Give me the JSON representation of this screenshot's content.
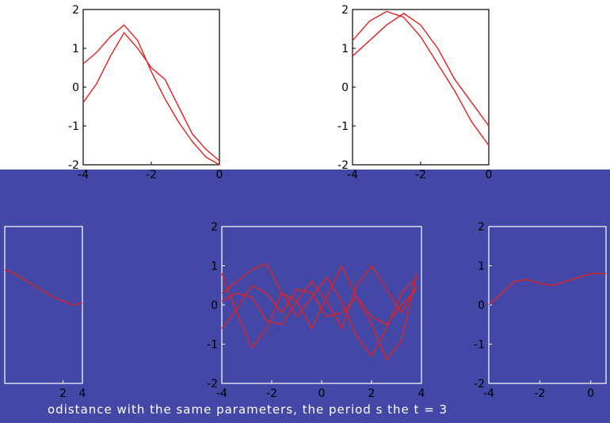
{
  "colors": {
    "background": "#4348a6",
    "band": "#ffffff",
    "axes": "#ffffff",
    "axes_top": "#000000",
    "curve": "#e02020",
    "tick_top": "#000000",
    "tick_bottom": "#000000"
  },
  "caption": "odistance with the same parameters, the period s the t = 3",
  "chart_data": [
    {
      "type": "line",
      "panel": "top-left",
      "xlim": [
        -4,
        0
      ],
      "ylim": [
        -2,
        2
      ],
      "xticks": [
        "-4",
        "-2",
        "0"
      ],
      "yticks": [
        "2",
        "1",
        "0",
        "-1",
        "-2"
      ],
      "series": [
        {
          "x": [
            -4,
            -3.6,
            -3.2,
            -2.8,
            -2.4,
            -2.0,
            -1.6,
            -1.2,
            -0.8,
            -0.4,
            0
          ],
          "values": [
            0.6,
            0.9,
            1.3,
            1.6,
            1.2,
            0.4,
            -0.3,
            -0.9,
            -1.4,
            -1.8,
            -2.0
          ]
        },
        {
          "x": [
            -4,
            -3.6,
            -3.2,
            -2.8,
            -2.4,
            -2.0,
            -1.6,
            -1.2,
            -0.8,
            -0.4,
            0
          ],
          "values": [
            -0.4,
            0.1,
            0.8,
            1.4,
            1.0,
            0.5,
            0.2,
            -0.5,
            -1.2,
            -1.6,
            -1.9
          ]
        }
      ]
    },
    {
      "type": "line",
      "panel": "top-right",
      "xlim": [
        -4,
        0
      ],
      "ylim": [
        -2,
        2
      ],
      "xticks": [
        "-4",
        "-2",
        "0"
      ],
      "yticks": [
        "2",
        "1",
        "0",
        "-1",
        "-2"
      ],
      "series": [
        {
          "x": [
            -4,
            -3.5,
            -3.0,
            -2.5,
            -2.0,
            -1.5,
            -1.0,
            -0.5,
            0
          ],
          "values": [
            1.2,
            1.7,
            1.95,
            1.8,
            1.3,
            0.6,
            -0.1,
            -0.9,
            -1.5
          ]
        },
        {
          "x": [
            -4,
            -3.5,
            -3.0,
            -2.5,
            -2.0,
            -1.5,
            -1.0,
            -0.5,
            0
          ],
          "values": [
            0.8,
            1.2,
            1.6,
            1.9,
            1.6,
            1.0,
            0.2,
            -0.4,
            -1.0
          ]
        }
      ]
    },
    {
      "type": "line",
      "panel": "bottom-left",
      "xlim": [
        -4,
        4
      ],
      "ylim": [
        -2,
        2
      ],
      "xticks": [
        "2",
        "4"
      ],
      "yticks": [],
      "series": [
        {
          "x": [
            -4,
            -3,
            -2,
            -1,
            0,
            1,
            2,
            3,
            4
          ],
          "values": [
            0.9,
            0.8,
            0.65,
            0.5,
            0.35,
            0.2,
            0.1,
            0.0,
            0.05
          ]
        }
      ]
    },
    {
      "type": "line",
      "panel": "bottom-center",
      "xlim": [
        -4,
        4
      ],
      "ylim": [
        -2,
        2
      ],
      "xticks": [
        "-4",
        "-2",
        "0",
        "2",
        "4"
      ],
      "yticks": [
        "2",
        "1",
        "0",
        "-1",
        "-2"
      ],
      "series": [
        {
          "x": [
            -4,
            -3.4,
            -2.8,
            -2.2,
            -1.6,
            -1.0,
            -0.4,
            0.2,
            0.8,
            1.4,
            2.0,
            2.6,
            3.2,
            3.8
          ],
          "values": [
            0.8,
            -0.2,
            -1.1,
            -0.6,
            0.3,
            0.1,
            -0.6,
            0.2,
            1.0,
            0.2,
            -0.5,
            -1.4,
            -0.9,
            0.8
          ]
        },
        {
          "x": [
            -4,
            -3.4,
            -2.8,
            -2.2,
            -1.6,
            -1.0,
            -0.4,
            0.2,
            0.8,
            1.4,
            2.0,
            2.6,
            3.2,
            3.8
          ],
          "values": [
            0.3,
            0.6,
            0.9,
            1.05,
            0.3,
            -0.3,
            0.2,
            0.7,
            0.1,
            -0.8,
            -1.3,
            -0.6,
            0.3,
            0.7
          ]
        },
        {
          "x": [
            -4,
            -3.4,
            -2.8,
            -2.2,
            -1.6,
            -1.0,
            -0.4,
            0.2,
            0.8,
            1.4,
            2.0,
            2.6,
            3.2,
            3.8
          ],
          "values": [
            0.1,
            0.3,
            0.2,
            -0.4,
            -0.5,
            0.1,
            0.6,
            0.1,
            -0.6,
            0.5,
            1.0,
            0.4,
            -0.2,
            0.5
          ]
        },
        {
          "x": [
            -4,
            -3.4,
            -2.8,
            -2.2,
            -1.6,
            -1.0,
            -0.4,
            0.2,
            0.8,
            1.4,
            2.0,
            2.6,
            3.2,
            3.8
          ],
          "values": [
            -0.6,
            -0.1,
            0.5,
            0.3,
            -0.2,
            0.4,
            0.3,
            -0.3,
            -0.2,
            0.2,
            -0.3,
            -0.5,
            0.0,
            0.4
          ]
        }
      ]
    },
    {
      "type": "line",
      "panel": "bottom-right",
      "xlim": [
        -4,
        0.6
      ],
      "ylim": [
        -2,
        2
      ],
      "xticks": [
        "-4",
        "-2",
        "0"
      ],
      "yticks": [
        "2",
        "1",
        "0",
        "-1",
        "-2"
      ],
      "series": [
        {
          "x": [
            -4,
            -3.5,
            -3.0,
            -2.5,
            -2.0,
            -1.5,
            -1.0,
            -0.5,
            0,
            0.6
          ],
          "values": [
            0.0,
            0.3,
            0.6,
            0.65,
            0.55,
            0.5,
            0.6,
            0.7,
            0.8,
            0.8
          ]
        }
      ]
    }
  ]
}
